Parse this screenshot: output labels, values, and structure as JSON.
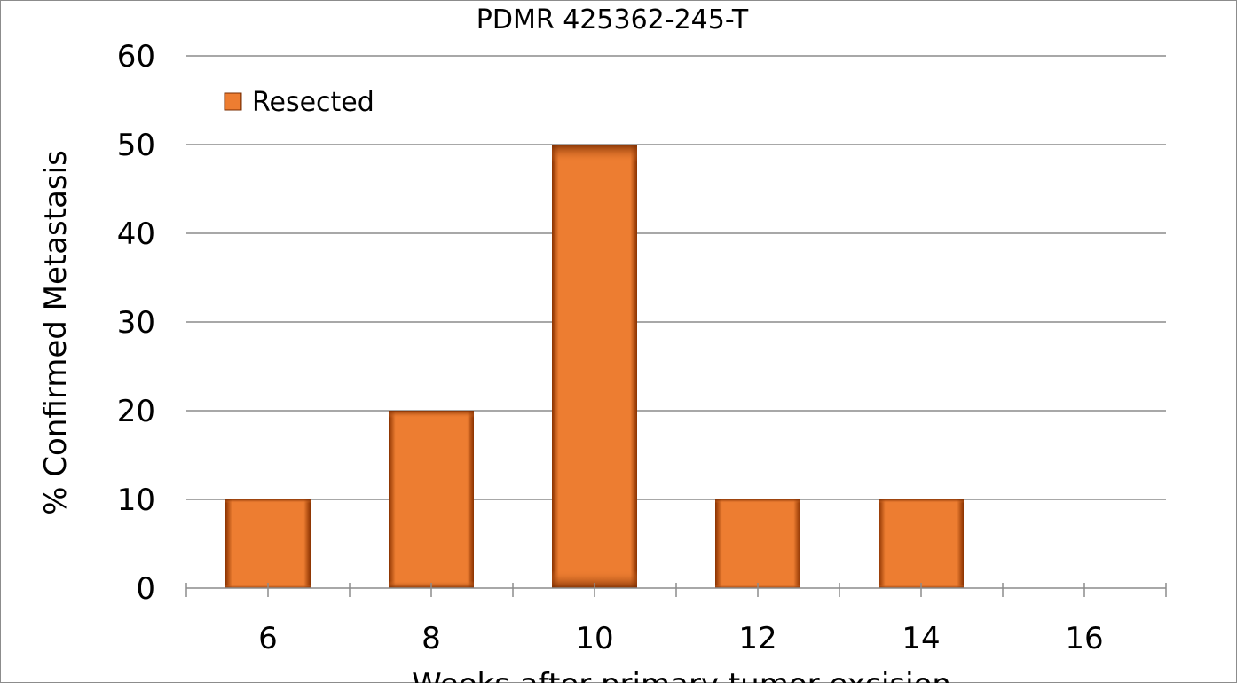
{
  "chart_data": {
    "type": "bar",
    "title": "PDMR 425362-245-T",
    "xlabel": "Weeks after primary tumor excision",
    "ylabel": "% Confirmed Metastasis",
    "categories": [
      "6",
      "8",
      "10",
      "12",
      "14",
      "16"
    ],
    "series": [
      {
        "name": "Resected",
        "values": [
          10,
          20,
          50,
          10,
          10,
          0
        ],
        "color": "#ED7D31"
      }
    ],
    "ylim": [
      0,
      60
    ],
    "yticks": [
      "0",
      "10",
      "20",
      "30",
      "40",
      "50",
      "60"
    ],
    "grid": true,
    "legend_position": "top-left"
  }
}
